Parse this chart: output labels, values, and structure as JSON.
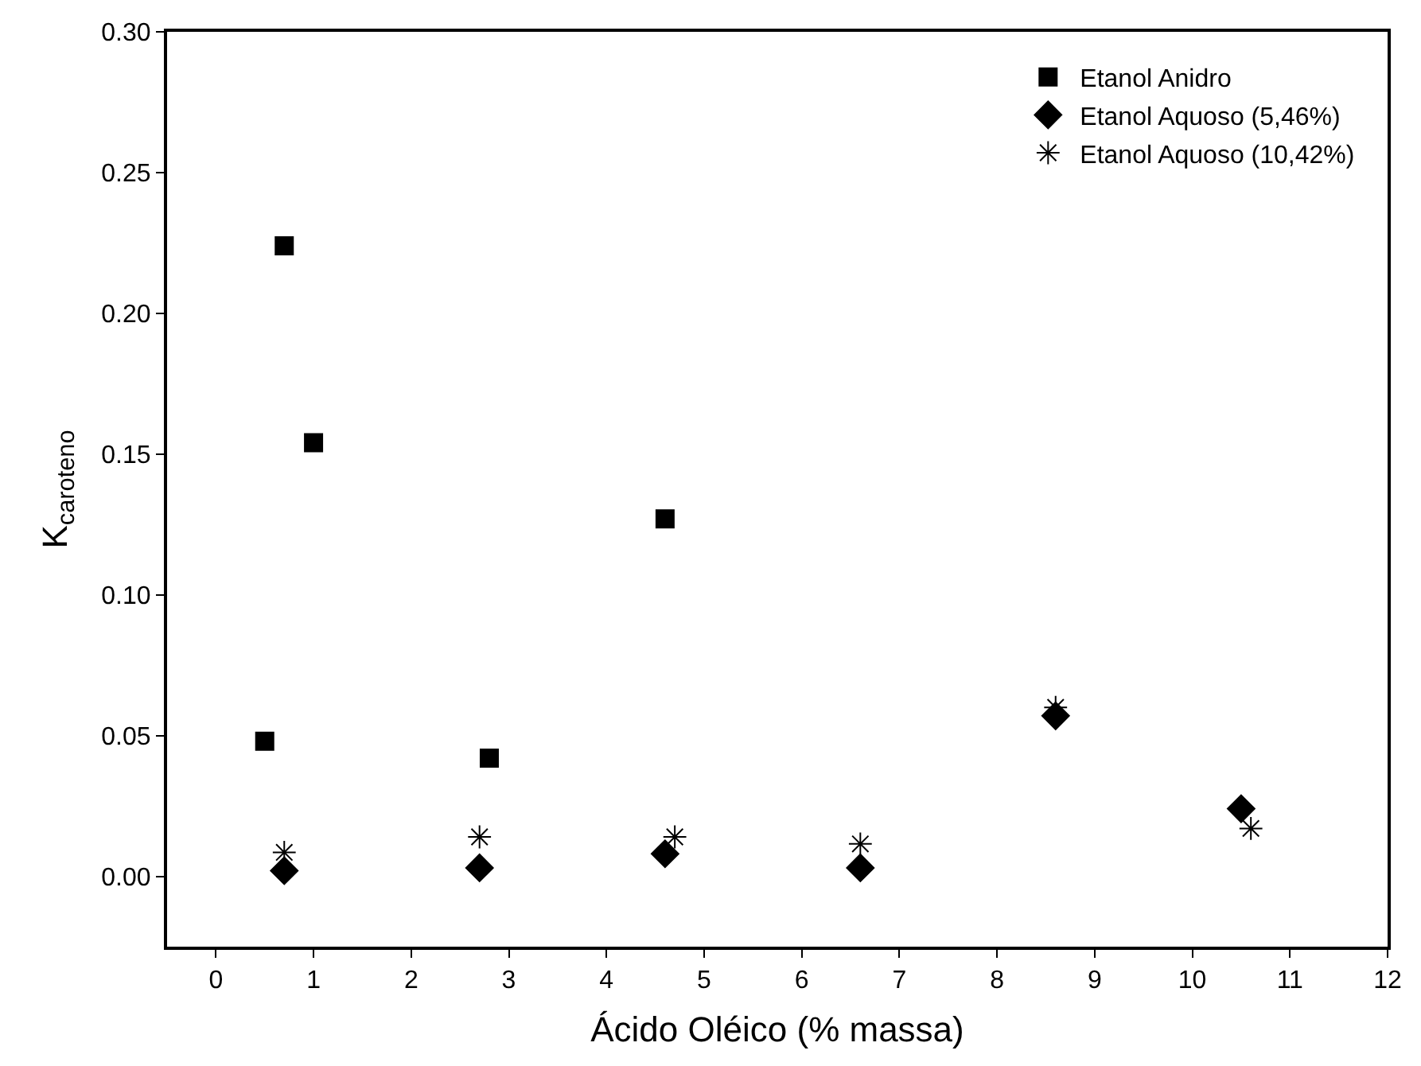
{
  "chart_data": {
    "type": "scatter",
    "xlabel": "Ácido Oléico (% massa)",
    "ylabel": "K$_{caroteno}$",
    "xlim": [
      -0.5,
      12
    ],
    "xticks": [
      0,
      1,
      2,
      3,
      4,
      5,
      6,
      7,
      8,
      9,
      10,
      11,
      12
    ],
    "ylim": [
      -0.025,
      0.3
    ],
    "yticks": [
      {
        "value": 0,
        "label": "0.00"
      },
      {
        "value": 0.05,
        "label": "0.05"
      },
      {
        "value": 0.1,
        "label": "0.10"
      },
      {
        "value": 0.15,
        "label": "0.15"
      },
      {
        "value": 0.2,
        "label": "0.20"
      },
      {
        "value": 0.25,
        "label": "0.25"
      },
      {
        "value": 0.3,
        "label": "0.30"
      }
    ],
    "grid": false,
    "legend": "top right",
    "series": [
      {
        "name": "Etanol Anidro",
        "color": "#000000",
        "marker": "square",
        "x": [
          0.5,
          0.7,
          1.0,
          2.8,
          4.6
        ],
        "values": [
          0.048,
          0.224,
          0.154,
          0.042,
          0.127
        ]
      },
      {
        "name": "Etanol Aquoso (5,46%)",
        "color": "#000000",
        "marker": "diamond",
        "x": [
          0.7,
          2.7,
          4.6,
          6.6,
          8.6,
          10.5
        ],
        "values": [
          0.002,
          0.003,
          0.008,
          0.003,
          0.057,
          0.024
        ]
      },
      {
        "name": "Etanol Aquoso (10,42%)",
        "color": "#000000",
        "marker": "cross",
        "x": [
          0.7,
          2.7,
          4.7,
          6.6,
          8.6,
          10.6
        ],
        "values": [
          0.0085,
          0.014,
          0.014,
          0.0115,
          0.06,
          0.017
        ]
      }
    ]
  }
}
